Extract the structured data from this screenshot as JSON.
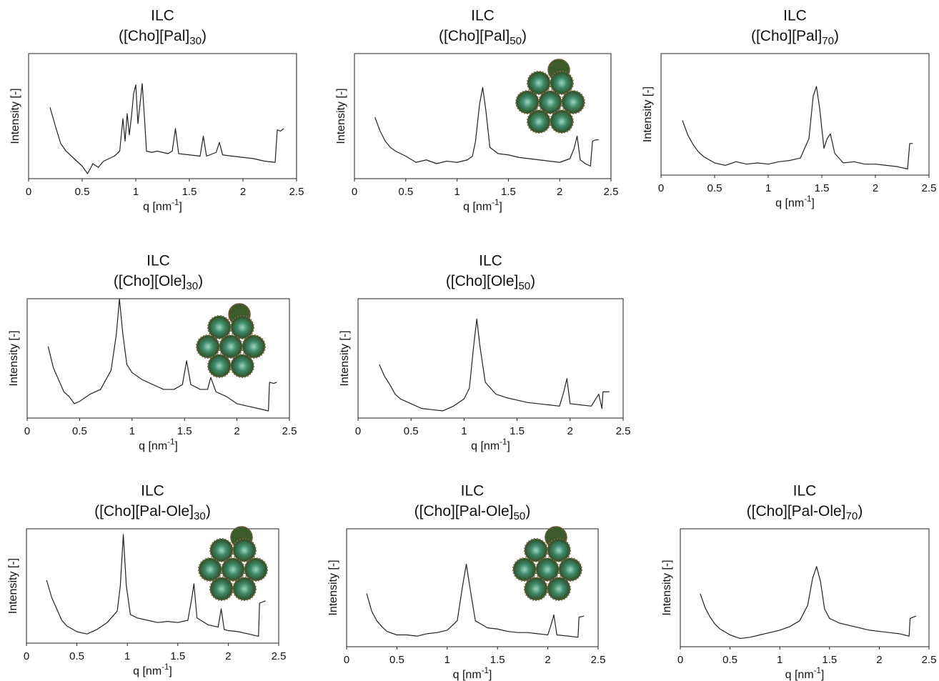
{
  "chart_data": [
    {
      "type": "line",
      "title": "ILC",
      "subtitle_parts": [
        "([Cho][Pal]",
        "30",
        ")"
      ],
      "xlabel_parts": [
        "q [nm",
        "-1",
        "]"
      ],
      "ylabel": "Intensity [-]",
      "color": "#222222",
      "xlim": [
        0,
        2.5
      ],
      "xticks": [
        0,
        0.5,
        1,
        1.5,
        2,
        2.5
      ],
      "ylim": [
        0,
        100
      ],
      "x": [
        0.2,
        0.25,
        0.3,
        0.35,
        0.4,
        0.45,
        0.5,
        0.55,
        0.6,
        0.65,
        0.7,
        0.75,
        0.8,
        0.85,
        0.88,
        0.9,
        0.92,
        0.94,
        0.96,
        0.98,
        1.0,
        1.02,
        1.04,
        1.06,
        1.08,
        1.1,
        1.15,
        1.2,
        1.3,
        1.34,
        1.37,
        1.4,
        1.5,
        1.6,
        1.63,
        1.66,
        1.75,
        1.78,
        1.81,
        1.9,
        2.0,
        2.1,
        2.2,
        2.3,
        2.32,
        2.35,
        2.38
      ],
      "values": [
        57,
        42,
        28,
        22,
        18,
        14,
        10,
        4,
        12,
        9,
        14,
        16,
        18,
        22,
        48,
        30,
        52,
        35,
        50,
        68,
        75,
        44,
        60,
        76,
        50,
        22,
        21,
        22,
        20,
        22,
        40,
        20,
        19,
        18,
        34,
        18,
        21,
        29,
        19,
        18,
        17,
        16,
        14,
        13,
        39,
        38,
        40
      ]
    },
    {
      "type": "line",
      "title": "ILC",
      "subtitle_parts": [
        "([Cho][Pal]",
        "50",
        ")"
      ],
      "xlabel_parts": [
        "q [nm",
        "-1",
        "]"
      ],
      "ylabel": "Intensity [-]",
      "color": "#222222",
      "xlim": [
        0,
        2.5
      ],
      "xticks": [
        0,
        0.5,
        1,
        1.5,
        2,
        2.5
      ],
      "ylim": [
        0,
        100
      ],
      "x": [
        0.2,
        0.25,
        0.3,
        0.35,
        0.4,
        0.5,
        0.6,
        0.7,
        0.8,
        0.9,
        1.0,
        1.1,
        1.15,
        1.18,
        1.22,
        1.25,
        1.28,
        1.32,
        1.4,
        1.5,
        1.6,
        1.7,
        1.8,
        1.9,
        2.0,
        2.1,
        2.14,
        2.17,
        2.2,
        2.25,
        2.3,
        2.32,
        2.35,
        2.38
      ],
      "values": [
        49,
        38,
        30,
        25,
        22,
        18,
        13,
        15,
        12,
        14,
        13,
        15,
        18,
        30,
        60,
        73,
        55,
        25,
        20,
        19,
        17,
        16,
        15,
        14,
        13,
        16,
        24,
        34,
        15,
        12,
        10,
        30,
        31,
        31
      ]
    },
    {
      "type": "line",
      "title": "ILC",
      "subtitle_parts": [
        "([Cho][Pal]",
        "70",
        ")"
      ],
      "xlabel_parts": [
        "q [nm",
        "-1",
        "]"
      ],
      "ylabel": "Intensity [-]",
      "color": "#222222",
      "xlim": [
        0,
        2.5
      ],
      "xticks": [
        0,
        0.5,
        1,
        1.5,
        2,
        2.5
      ],
      "ylim": [
        0,
        100
      ],
      "x": [
        0.2,
        0.25,
        0.3,
        0.35,
        0.4,
        0.5,
        0.6,
        0.7,
        0.8,
        0.9,
        1.0,
        1.1,
        1.2,
        1.3,
        1.38,
        1.42,
        1.45,
        1.48,
        1.52,
        1.55,
        1.58,
        1.62,
        1.7,
        1.8,
        1.9,
        2.0,
        2.1,
        2.2,
        2.3,
        2.32,
        2.35
      ],
      "values": [
        45,
        33,
        25,
        19,
        15,
        10,
        8,
        11,
        9,
        10,
        9,
        11,
        12,
        14,
        30,
        65,
        73,
        55,
        22,
        30,
        34,
        18,
        10,
        11,
        9,
        9,
        8,
        7,
        5,
        26,
        26
      ]
    },
    {
      "type": "line",
      "title": "ILC",
      "subtitle_parts": [
        "([Cho][Ole]",
        "30",
        ")"
      ],
      "xlabel_parts": [
        "q [nm",
        "-1",
        "]"
      ],
      "ylabel": "Intensity [-]",
      "color": "#222222",
      "xlim": [
        0,
        2.5
      ],
      "xticks": [
        0,
        0.5,
        1,
        1.5,
        2,
        2.5
      ],
      "ylim": [
        0,
        100
      ],
      "x": [
        0.2,
        0.25,
        0.3,
        0.35,
        0.4,
        0.45,
        0.5,
        0.6,
        0.7,
        0.8,
        0.85,
        0.88,
        0.91,
        0.95,
        1.0,
        1.1,
        1.2,
        1.3,
        1.4,
        1.48,
        1.52,
        1.56,
        1.65,
        1.72,
        1.75,
        1.8,
        1.9,
        2.0,
        2.1,
        2.2,
        2.3,
        2.31,
        2.35,
        2.38
      ],
      "values": [
        60,
        42,
        32,
        22,
        18,
        12,
        14,
        20,
        24,
        40,
        70,
        100,
        72,
        45,
        38,
        32,
        28,
        24,
        24,
        28,
        48,
        28,
        24,
        24,
        34,
        22,
        18,
        12,
        10,
        8,
        6,
        30,
        29,
        30
      ]
    },
    {
      "type": "line",
      "title": "ILC",
      "subtitle_parts": [
        "([Cho][Ole]",
        "50",
        ")"
      ],
      "xlabel_parts": [
        "q [nm",
        "-1",
        "]"
      ],
      "ylabel": "Intensity [-]",
      "color": "#222222",
      "xlim": [
        0,
        2.5
      ],
      "xticks": [
        0,
        0.5,
        1,
        1.5,
        2,
        2.5
      ],
      "ylim": [
        0,
        100
      ],
      "x": [
        0.2,
        0.25,
        0.3,
        0.35,
        0.4,
        0.5,
        0.6,
        0.7,
        0.8,
        0.9,
        1.0,
        1.05,
        1.09,
        1.12,
        1.15,
        1.2,
        1.3,
        1.4,
        1.5,
        1.6,
        1.7,
        1.8,
        1.9,
        1.94,
        1.97,
        2.0,
        2.1,
        2.2,
        2.27,
        2.3,
        2.31,
        2.37
      ],
      "values": [
        45,
        35,
        28,
        20,
        16,
        12,
        8,
        7,
        6,
        10,
        16,
        25,
        60,
        83,
        60,
        30,
        20,
        17,
        15,
        13,
        12,
        11,
        10,
        22,
        33,
        12,
        11,
        10,
        20,
        8,
        22,
        22
      ]
    },
    {
      "type": "line",
      "title": "ILC",
      "subtitle_parts": [
        "([Cho][Pal-Ole]",
        "30",
        ")"
      ],
      "xlabel_parts": [
        "q [nm",
        "-1",
        "]"
      ],
      "ylabel": "Intensity [-]",
      "color": "#222222",
      "xlim": [
        0,
        2.5
      ],
      "xticks": [
        0,
        0.5,
        1,
        1.5,
        2,
        2.5
      ],
      "ylim": [
        0,
        100
      ],
      "x": [
        0.2,
        0.25,
        0.3,
        0.35,
        0.4,
        0.5,
        0.6,
        0.7,
        0.8,
        0.9,
        0.93,
        0.96,
        0.99,
        1.03,
        1.1,
        1.2,
        1.3,
        1.4,
        1.5,
        1.6,
        1.64,
        1.66,
        1.69,
        1.8,
        1.9,
        1.93,
        1.96,
        2.0,
        2.1,
        2.2,
        2.3,
        2.31,
        2.37
      ],
      "values": [
        55,
        40,
        30,
        20,
        15,
        10,
        8,
        12,
        18,
        28,
        50,
        95,
        50,
        25,
        22,
        20,
        18,
        19,
        18,
        20,
        40,
        52,
        22,
        16,
        14,
        30,
        12,
        11,
        10,
        8,
        6,
        35,
        37
      ]
    },
    {
      "type": "line",
      "title": "ILC",
      "subtitle_parts": [
        "([Cho][Pal-Ole]",
        "50",
        ")"
      ],
      "xlabel_parts": [
        "q [nm",
        "-1",
        "]"
      ],
      "ylabel": "Intensity [-]",
      "color": "#222222",
      "xlim": [
        0,
        2.5
      ],
      "xticks": [
        0,
        0.5,
        1,
        1.5,
        2,
        2.5
      ],
      "ylim": [
        0,
        100
      ],
      "x": [
        0.2,
        0.25,
        0.3,
        0.35,
        0.4,
        0.5,
        0.6,
        0.7,
        0.8,
        0.9,
        1.0,
        1.1,
        1.15,
        1.19,
        1.23,
        1.28,
        1.4,
        1.5,
        1.6,
        1.7,
        1.8,
        1.9,
        2.0,
        2.03,
        2.06,
        2.09,
        2.2,
        2.3,
        2.31,
        2.36
      ],
      "values": [
        45,
        30,
        22,
        17,
        13,
        10,
        10,
        9,
        11,
        12,
        14,
        22,
        50,
        70,
        48,
        22,
        16,
        15,
        13,
        12,
        12,
        11,
        10,
        18,
        27,
        10,
        9,
        8,
        25,
        26
      ]
    },
    {
      "type": "line",
      "title": "ILC",
      "subtitle_parts": [
        "([Cho][Pal-Ole]",
        "70",
        ")"
      ],
      "xlabel_parts": [
        "q [nm",
        "-1",
        "]"
      ],
      "ylabel": "Intensity [-]",
      "color": "#222222",
      "xlim": [
        0,
        2.5
      ],
      "xticks": [
        0,
        0.5,
        1,
        1.5,
        2,
        2.5
      ],
      "ylim": [
        0,
        100
      ],
      "x": [
        0.2,
        0.25,
        0.3,
        0.35,
        0.4,
        0.5,
        0.6,
        0.7,
        0.8,
        0.9,
        1.0,
        1.1,
        1.2,
        1.28,
        1.33,
        1.37,
        1.41,
        1.45,
        1.5,
        1.6,
        1.7,
        1.8,
        1.9,
        2.0,
        2.1,
        2.2,
        2.3,
        2.31,
        2.37
      ],
      "values": [
        45,
        33,
        25,
        19,
        15,
        10,
        7,
        8,
        10,
        12,
        14,
        17,
        22,
        35,
        58,
        68,
        55,
        32,
        24,
        20,
        18,
        16,
        14,
        13,
        12,
        11,
        9,
        24,
        26
      ]
    }
  ]
}
